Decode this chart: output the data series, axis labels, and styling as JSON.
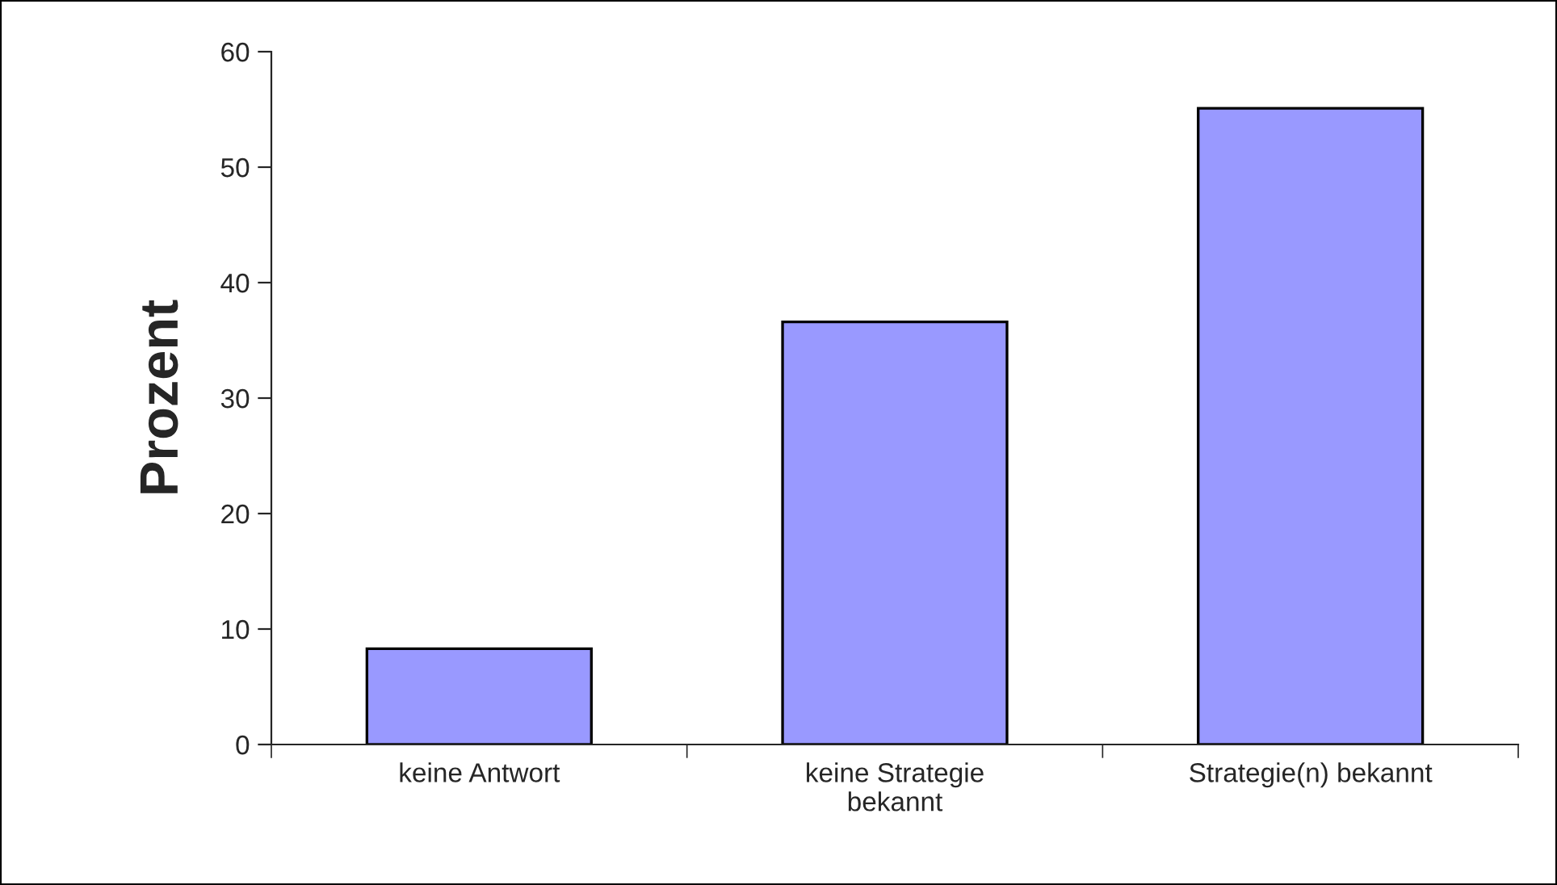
{
  "chart_data": {
    "type": "bar",
    "ylabel": "Prozent",
    "categories": [
      "keine Antwort",
      "keine Strategie\nbekannt",
      "Strategie(n) bekannt"
    ],
    "values": [
      8.3,
      36.6,
      55.1
    ],
    "color": "#9999ff",
    "ylim": [
      0,
      60
    ],
    "yticks": [
      0,
      10,
      20,
      30,
      40,
      50,
      60
    ],
    "grid": false,
    "legend": false
  }
}
